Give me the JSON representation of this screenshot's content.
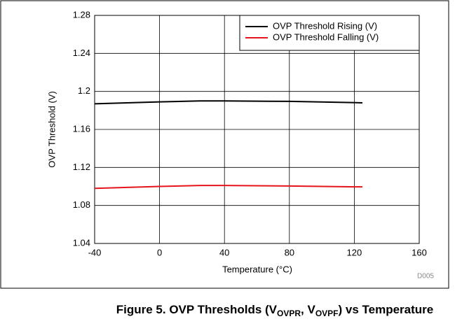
{
  "chart_data": {
    "type": "line",
    "xlabel": "Temperature (°C)",
    "ylabel": "OVP Threshold (V)",
    "annotation": "D005",
    "caption_parts": [
      "Figure 5. OVP Thresholds (V",
      "OVPR",
      ", V",
      "OVPF",
      ") vs Temperature"
    ],
    "x": [
      -40,
      0,
      25,
      40,
      80,
      125
    ],
    "series": [
      {
        "name": "OVP Threshold Rising (V)",
        "color": "#000000",
        "values": [
          1.187,
          1.189,
          1.19,
          1.19,
          1.1895,
          1.188
        ]
      },
      {
        "name": "OVP Threshold Falling (V)",
        "color": "#e8141c",
        "values": [
          1.098,
          1.1,
          1.101,
          1.101,
          1.1005,
          1.0995
        ]
      }
    ],
    "xlim": [
      -40,
      160
    ],
    "xticks": [
      -40,
      0,
      40,
      80,
      120,
      160
    ],
    "ylim": [
      1.04,
      1.28
    ],
    "yticks": [
      1.04,
      1.08,
      1.12,
      1.16,
      1.2,
      1.24,
      1.28
    ],
    "grid": true,
    "legend": "upper right"
  }
}
